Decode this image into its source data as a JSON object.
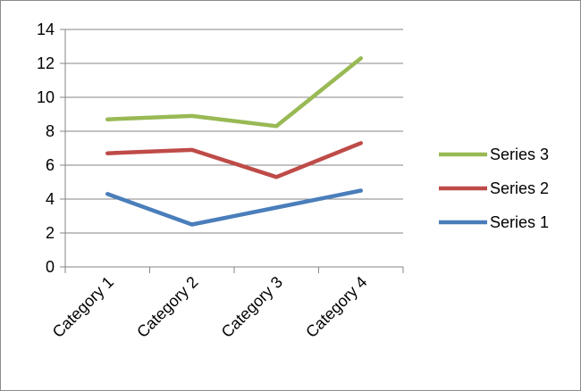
{
  "chart_data": {
    "type": "line",
    "categories": [
      "Category 1",
      "Category 2",
      "Category 3",
      "Category 4"
    ],
    "series": [
      {
        "name": "Series 1",
        "values": [
          4.3,
          2.5,
          3.5,
          4.5
        ],
        "color": "#4a7ebb"
      },
      {
        "name": "Series 2",
        "values": [
          6.7,
          6.9,
          5.3,
          7.3
        ],
        "color": "#be4b48"
      },
      {
        "name": "Series 3",
        "values": [
          8.7,
          8.9,
          8.3,
          12.3
        ],
        "color": "#98b954"
      }
    ],
    "ylim": [
      0,
      14
    ],
    "yticks": [
      "0",
      "2",
      "4",
      "6",
      "8",
      "10",
      "12",
      "14"
    ],
    "grid": true,
    "legend_position": "right",
    "legend_order": [
      "Series 3",
      "Series 2",
      "Series 1"
    ],
    "title": "",
    "xlabel": "",
    "ylabel": ""
  }
}
